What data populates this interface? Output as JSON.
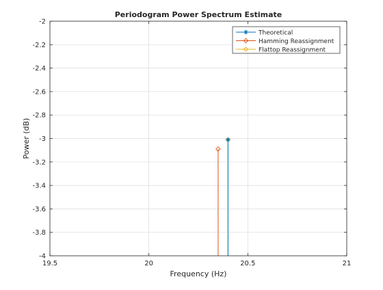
{
  "chart_data": {
    "type": "stem",
    "title": "Periodogram Power Spectrum Estimate",
    "xlabel": "Frequency (Hz)",
    "ylabel": "Power (dB)",
    "xlim": [
      19.5,
      21
    ],
    "ylim": [
      -4,
      -2
    ],
    "xticks": [
      19.5,
      20,
      20.5,
      21
    ],
    "xtick_labels": [
      "19.5",
      "20",
      "20.5",
      "21"
    ],
    "yticks": [
      -2,
      -2.2,
      -2.4,
      -2.6,
      -2.8,
      -3,
      -3.2,
      -3.4,
      -3.6,
      -3.8,
      -4
    ],
    "ytick_labels": [
      "-2",
      "-2.2",
      "-2.4",
      "-2.6",
      "-2.8",
      "-3",
      "-3.2",
      "-3.4",
      "-3.6",
      "-3.8",
      "-4"
    ],
    "grid": true,
    "legend_position": "top-right",
    "series": [
      {
        "name": "Theoretical",
        "marker": "asterisk",
        "color": "#0072BD",
        "x": [
          20.4
        ],
        "y": [
          -3.01
        ]
      },
      {
        "name": "Hamming Reassignment",
        "marker": "diamond",
        "color": "#D95319",
        "x": [
          20.35
        ],
        "y": [
          -3.09
        ]
      },
      {
        "name": "Flattop Reassignment",
        "marker": "diamond",
        "color": "#EDB120",
        "x": [
          20.4
        ],
        "y": [
          -3.01
        ]
      }
    ]
  }
}
